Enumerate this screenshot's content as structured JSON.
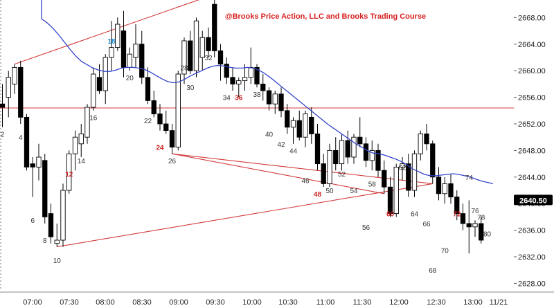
{
  "chart_data": {
    "type": "candlestick",
    "copyright": "@Brooks Price Action, LLC and Brooks Trading Course",
    "ylim": [
      2626,
      2675
    ],
    "y_ticks": [
      "2628.00",
      "2632.00",
      "2636.00",
      "2640.00",
      "2644.00",
      "2648.00",
      "2652.00",
      "2656.00",
      "2660.00",
      "2664.00",
      "2668.00"
    ],
    "x_ticks": [
      "07:00",
      "07:30",
      "08:00",
      "08:30",
      "09:00",
      "09:30",
      "10:00",
      "10:30",
      "11:00",
      "11:30",
      "12:00",
      "12:30",
      "13:00",
      "11/21"
    ],
    "last_price": "2640.50",
    "horizontal_line_level": 2654.4,
    "moving_average": [
      2667.8,
      2667.2,
      2666.4,
      2665.4,
      2664.3,
      2663.2,
      2662.2,
      2661.4,
      2660.9,
      2660.4,
      2660.1,
      2659.9,
      2659.9,
      2660.1,
      2660.4,
      2660.5,
      2660.5,
      2660.4,
      2660.2,
      2659.8,
      2659.3,
      2658.8,
      2658.4,
      2658.2,
      2658.3,
      2658.7,
      2659.2,
      2659.6,
      2660.0,
      2660.4,
      2660.7,
      2660.8,
      2660.7,
      2660.5,
      2660.4,
      2660.4,
      2660.5,
      2660.4,
      2660.1,
      2659.6,
      2659.0,
      2658.3,
      2657.6,
      2656.9,
      2656.2,
      2655.5,
      2654.8,
      2654.1,
      2653.4,
      2652.7,
      2652.0,
      2651.4,
      2650.8,
      2650.2,
      2649.6,
      2649.0,
      2648.5,
      2648.0,
      2647.6,
      2647.5,
      2647.3,
      2647.0,
      2646.7,
      2646.3,
      2645.8,
      2645.2,
      2644.8,
      2644.4,
      2644.2,
      2644.2,
      2644.3,
      2644.4,
      2644.5,
      2644.4,
      2644.2,
      2644.0,
      2643.7,
      2643.4,
      2643.2,
      2643.0
    ],
    "candles": [
      {
        "o": 2655.0,
        "h": 2658.0,
        "l": 2651.5,
        "c": 2654.5
      },
      {
        "o": 2656.0,
        "h": 2660.0,
        "l": 2653.0,
        "c": 2659.0
      },
      {
        "o": 2658.0,
        "h": 2661.0,
        "l": 2656.5,
        "c": 2660.5
      },
      {
        "o": 2660.5,
        "h": 2661.5,
        "l": 2652.0,
        "c": 2653.0
      },
      {
        "o": 2653.0,
        "h": 2653.5,
        "l": 2645.0,
        "c": 2645.5
      },
      {
        "o": 2646.0,
        "h": 2647.0,
        "l": 2641.0,
        "c": 2645.5
      },
      {
        "o": 2645.5,
        "h": 2649.0,
        "l": 2643.5,
        "c": 2647.0
      },
      {
        "o": 2646.5,
        "h": 2647.5,
        "l": 2637.0,
        "c": 2638.0
      },
      {
        "o": 2638.5,
        "h": 2640.0,
        "l": 2634.0,
        "c": 2635.0
      },
      {
        "o": 2634.0,
        "h": 2637.0,
        "l": 2633.5,
        "c": 2634.5
      },
      {
        "o": 2634.5,
        "h": 2643.0,
        "l": 2633.5,
        "c": 2642.0
      },
      {
        "o": 2642.0,
        "h": 2648.0,
        "l": 2641.5,
        "c": 2647.5
      },
      {
        "o": 2647.5,
        "h": 2651.0,
        "l": 2645.0,
        "c": 2650.0
      },
      {
        "o": 2649.0,
        "h": 2652.0,
        "l": 2647.0,
        "c": 2650.5
      },
      {
        "o": 2650.0,
        "h": 2655.0,
        "l": 2649.0,
        "c": 2654.5
      },
      {
        "o": 2654.5,
        "h": 2660.5,
        "l": 2654.0,
        "c": 2659.5
      },
      {
        "o": 2659.0,
        "h": 2661.0,
        "l": 2656.5,
        "c": 2657.0
      },
      {
        "o": 2657.0,
        "h": 2662.5,
        "l": 2655.0,
        "c": 2662.0
      },
      {
        "o": 2662.0,
        "h": 2667.5,
        "l": 2660.0,
        "c": 2663.5
      },
      {
        "o": 2663.5,
        "h": 2668.0,
        "l": 2663.0,
        "c": 2667.0
      },
      {
        "o": 2666.0,
        "h": 2669.0,
        "l": 2659.0,
        "c": 2660.5
      },
      {
        "o": 2660.5,
        "h": 2663.5,
        "l": 2660.0,
        "c": 2662.5
      },
      {
        "o": 2662.0,
        "h": 2667.0,
        "l": 2660.5,
        "c": 2664.0
      },
      {
        "o": 2664.0,
        "h": 2666.0,
        "l": 2658.0,
        "c": 2659.0
      },
      {
        "o": 2659.0,
        "h": 2660.5,
        "l": 2655.0,
        "c": 2655.5
      },
      {
        "o": 2655.5,
        "h": 2657.0,
        "l": 2653.0,
        "c": 2653.5
      },
      {
        "o": 2653.5,
        "h": 2655.0,
        "l": 2651.0,
        "c": 2652.0
      },
      {
        "o": 2652.0,
        "h": 2654.0,
        "l": 2650.5,
        "c": 2651.0
      },
      {
        "o": 2651.0,
        "h": 2652.0,
        "l": 2647.5,
        "c": 2648.5
      },
      {
        "o": 2648.5,
        "h": 2660.0,
        "l": 2648.0,
        "c": 2659.5
      },
      {
        "o": 2659.5,
        "h": 2665.0,
        "l": 2658.0,
        "c": 2664.5
      },
      {
        "o": 2664.5,
        "h": 2666.0,
        "l": 2659.5,
        "c": 2660.0
      },
      {
        "o": 2660.0,
        "h": 2668.0,
        "l": 2659.0,
        "c": 2667.5
      },
      {
        "o": 2662.0,
        "h": 2666.0,
        "l": 2660.0,
        "c": 2665.0
      },
      {
        "o": 2665.0,
        "h": 2666.5,
        "l": 2662.0,
        "c": 2663.0
      },
      {
        "o": 2670.0,
        "h": 2671.5,
        "l": 2662.0,
        "c": 2663.0
      },
      {
        "o": 2663.0,
        "h": 2664.0,
        "l": 2658.5,
        "c": 2661.0
      },
      {
        "o": 2661.0,
        "h": 2662.0,
        "l": 2658.0,
        "c": 2659.0
      },
      {
        "o": 2659.0,
        "h": 2660.5,
        "l": 2657.0,
        "c": 2658.0
      },
      {
        "o": 2658.0,
        "h": 2659.0,
        "l": 2656.0,
        "c": 2658.5
      },
      {
        "o": 2658.5,
        "h": 2661.0,
        "l": 2657.0,
        "c": 2659.0
      },
      {
        "o": 2659.0,
        "h": 2663.5,
        "l": 2658.0,
        "c": 2660.5
      },
      {
        "o": 2660.5,
        "h": 2661.0,
        "l": 2657.5,
        "c": 2658.0
      },
      {
        "o": 2658.0,
        "h": 2659.5,
        "l": 2655.5,
        "c": 2657.0
      },
      {
        "o": 2657.0,
        "h": 2657.5,
        "l": 2654.0,
        "c": 2655.0
      },
      {
        "o": 2655.0,
        "h": 2657.0,
        "l": 2653.5,
        "c": 2656.5
      },
      {
        "o": 2656.5,
        "h": 2657.5,
        "l": 2653.0,
        "c": 2654.0
      },
      {
        "o": 2654.0,
        "h": 2655.0,
        "l": 2650.5,
        "c": 2651.5
      },
      {
        "o": 2651.5,
        "h": 2653.0,
        "l": 2649.0,
        "c": 2652.5
      },
      {
        "o": 2652.5,
        "h": 2654.0,
        "l": 2649.5,
        "c": 2650.0
      },
      {
        "o": 2650.0,
        "h": 2654.0,
        "l": 2648.5,
        "c": 2653.5
      },
      {
        "o": 2653.0,
        "h": 2654.5,
        "l": 2649.0,
        "c": 2650.5
      },
      {
        "o": 2650.5,
        "h": 2652.0,
        "l": 2645.0,
        "c": 2646.0
      },
      {
        "o": 2646.0,
        "h": 2647.5,
        "l": 2642.5,
        "c": 2643.0
      },
      {
        "o": 2643.0,
        "h": 2649.0,
        "l": 2642.5,
        "c": 2648.0
      },
      {
        "o": 2648.0,
        "h": 2650.0,
        "l": 2645.0,
        "c": 2646.0
      },
      {
        "o": 2646.0,
        "h": 2650.5,
        "l": 2645.0,
        "c": 2649.5
      },
      {
        "o": 2649.5,
        "h": 2651.0,
        "l": 2646.0,
        "c": 2647.0
      },
      {
        "o": 2647.0,
        "h": 2650.5,
        "l": 2646.0,
        "c": 2650.0
      },
      {
        "o": 2650.0,
        "h": 2653.0,
        "l": 2648.5,
        "c": 2649.0
      },
      {
        "o": 2649.0,
        "h": 2650.0,
        "l": 2645.5,
        "c": 2646.5
      },
      {
        "o": 2646.5,
        "h": 2649.5,
        "l": 2645.0,
        "c": 2648.0
      },
      {
        "o": 2648.0,
        "h": 2649.0,
        "l": 2644.0,
        "c": 2645.0
      },
      {
        "o": 2645.0,
        "h": 2646.5,
        "l": 2641.5,
        "c": 2642.5
      },
      {
        "o": 2642.5,
        "h": 2644.0,
        "l": 2638.0,
        "c": 2638.5
      },
      {
        "o": 2638.5,
        "h": 2646.0,
        "l": 2638.0,
        "c": 2645.5
      },
      {
        "o": 2645.5,
        "h": 2647.0,
        "l": 2643.5,
        "c": 2646.0
      },
      {
        "o": 2646.0,
        "h": 2647.5,
        "l": 2641.0,
        "c": 2642.0
      },
      {
        "o": 2642.0,
        "h": 2648.0,
        "l": 2641.0,
        "c": 2647.5
      },
      {
        "o": 2647.5,
        "h": 2651.0,
        "l": 2646.5,
        "c": 2650.5
      },
      {
        "o": 2650.5,
        "h": 2652.0,
        "l": 2648.0,
        "c": 2649.0
      },
      {
        "o": 2649.0,
        "h": 2649.5,
        "l": 2643.0,
        "c": 2644.0
      },
      {
        "o": 2644.0,
        "h": 2645.5,
        "l": 2640.5,
        "c": 2641.5
      },
      {
        "o": 2641.5,
        "h": 2644.0,
        "l": 2640.0,
        "c": 2643.0
      },
      {
        "o": 2643.0,
        "h": 2644.5,
        "l": 2640.0,
        "c": 2641.0
      },
      {
        "o": 2641.0,
        "h": 2642.0,
        "l": 2637.5,
        "c": 2638.5
      },
      {
        "o": 2638.5,
        "h": 2640.0,
        "l": 2636.0,
        "c": 2637.0
      },
      {
        "o": 2637.0,
        "h": 2640.5,
        "l": 2632.5,
        "c": 2636.5
      },
      {
        "o": 2636.5,
        "h": 2637.5,
        "l": 2635.0,
        "c": 2637.0
      },
      {
        "o": 2637.0,
        "h": 2638.0,
        "l": 2634.0,
        "c": 2634.5
      }
    ],
    "bar_labels": [
      {
        "text": "2",
        "i": 0,
        "y": 2650.5,
        "color": "#333333"
      },
      {
        "text": "4",
        "i": 3,
        "y": 2650.0,
        "color": "#333333"
      },
      {
        "text": "6",
        "i": 5,
        "y": 2637.5,
        "color": "#333333"
      },
      {
        "text": "8",
        "i": 7,
        "y": 2634.5,
        "color": "#333333"
      },
      {
        "text": "10",
        "i": 9,
        "y": 2631.5,
        "color": "#333333"
      },
      {
        "text": "12",
        "i": 11,
        "y": 2644.5,
        "color": "#cc2222"
      },
      {
        "text": "14",
        "i": 13,
        "y": 2646.5,
        "color": "#333333"
      },
      {
        "text": "16",
        "i": 15,
        "y": 2653.0,
        "color": "#333333"
      },
      {
        "text": "18",
        "i": 18,
        "y": 2664.5,
        "color": "#1f8fd6"
      },
      {
        "text": "20",
        "i": 21,
        "y": 2659.0,
        "color": "#333333"
      },
      {
        "text": "22",
        "i": 24,
        "y": 2652.5,
        "color": "#333333"
      },
      {
        "text": "24",
        "i": 26,
        "y": 2648.5,
        "color": "#cc2222"
      },
      {
        "text": "26",
        "i": 28,
        "y": 2646.5,
        "color": "#333333"
      },
      {
        "text": "28",
        "i": 30,
        "y": 2660.5,
        "color": "#333333"
      },
      {
        "text": "30",
        "i": 31,
        "y": 2657.5,
        "color": "#333333"
      },
      {
        "text": "32",
        "i": 34,
        "y": 2662.0,
        "color": "#333333"
      },
      {
        "text": "34",
        "i": 37,
        "y": 2656.0,
        "color": "#333333"
      },
      {
        "text": "36",
        "i": 39,
        "y": 2656.0,
        "color": "#cc2222"
      },
      {
        "text": "38",
        "i": 42,
        "y": 2656.5,
        "color": "#333333"
      },
      {
        "text": "40",
        "i": 44,
        "y": 2650.5,
        "color": "#333333"
      },
      {
        "text": "42",
        "i": 46,
        "y": 2649.0,
        "color": "#333333"
      },
      {
        "text": "44",
        "i": 48,
        "y": 2648.0,
        "color": "#333333"
      },
      {
        "text": "46",
        "i": 50,
        "y": 2643.5,
        "color": "#333333"
      },
      {
        "text": "48",
        "i": 52,
        "y": 2641.5,
        "color": "#cc2222"
      },
      {
        "text": "50",
        "i": 54,
        "y": 2642.0,
        "color": "#333333"
      },
      {
        "text": "52",
        "i": 56,
        "y": 2644.5,
        "color": "#333333"
      },
      {
        "text": "54",
        "i": 58,
        "y": 2642.0,
        "color": "#333333"
      },
      {
        "text": "56",
        "i": 60,
        "y": 2636.5,
        "color": "#333333"
      },
      {
        "text": "58",
        "i": 61,
        "y": 2643.0,
        "color": "#333333"
      },
      {
        "text": "60",
        "i": 64,
        "y": 2638.5,
        "color": "#cc2222"
      },
      {
        "text": "62",
        "i": 66,
        "y": 2645.5,
        "color": "#333333"
      },
      {
        "text": "64",
        "i": 68,
        "y": 2638.5,
        "color": "#333333"
      },
      {
        "text": "66",
        "i": 70,
        "y": 2637.0,
        "color": "#333333"
      },
      {
        "text": "68",
        "i": 71,
        "y": 2630.0,
        "color": "#333333"
      },
      {
        "text": "70",
        "i": 73,
        "y": 2633.0,
        "color": "#333333"
      },
      {
        "text": "72",
        "i": 75,
        "y": 2638.5,
        "color": "#cc2222"
      },
      {
        "text": "74",
        "i": 77,
        "y": 2644.0,
        "color": "#333333"
      },
      {
        "text": "76",
        "i": 78,
        "y": 2639.0,
        "color": "#333333"
      },
      {
        "text": "78",
        "i": 79,
        "y": 2638.0,
        "color": "#333333"
      },
      {
        "text": "80",
        "i": 80,
        "y": 2635.5,
        "color": "#333333"
      }
    ]
  }
}
